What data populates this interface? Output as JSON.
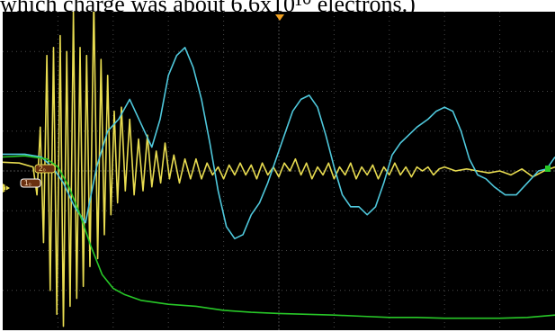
{
  "caption": {
    "text": "which charge was about 6.6x10¹⁰ electrons.)"
  },
  "scope": {
    "ch1_marker_label": "1",
    "badge_ch2": "2₀",
    "badge_ch1": "1₀",
    "colors": {
      "background": "#000000",
      "grid": "#4a4a4a",
      "yellow": "#e8dc50",
      "cyan": "#4fc8dc",
      "green": "#28c828",
      "trigger": "#f0a020",
      "frame_blue": "#2f6fd0"
    }
  },
  "chart_data": {
    "type": "line",
    "title": "",
    "xlabel": "",
    "ylabel": "",
    "grid": true,
    "divisions": {
      "x": 10,
      "y": 8
    },
    "xlim": [
      0,
      10
    ],
    "ylim": [
      -4,
      4
    ],
    "series": [
      {
        "color": "#e8dc50",
        "points": [
          [
            0,
            0.22
          ],
          [
            0.3,
            0.2
          ],
          [
            0.55,
            0.1
          ],
          [
            0.62,
            -0.6
          ],
          [
            0.68,
            1.1
          ],
          [
            0.74,
            -1.8
          ],
          [
            0.8,
            2.9
          ],
          [
            0.86,
            -3.0
          ],
          [
            0.92,
            3.1
          ],
          [
            0.98,
            -3.6
          ],
          [
            1.04,
            3.4
          ],
          [
            1.1,
            -3.9
          ],
          [
            1.16,
            3.0
          ],
          [
            1.22,
            -3.4
          ],
          [
            1.28,
            4.0
          ],
          [
            1.34,
            -3.2
          ],
          [
            1.4,
            3.1
          ],
          [
            1.46,
            -2.9
          ],
          [
            1.52,
            2.9
          ],
          [
            1.58,
            -2.4
          ],
          [
            1.65,
            4.3
          ],
          [
            1.72,
            -2.2
          ],
          [
            1.78,
            2.8
          ],
          [
            1.84,
            -1.6
          ],
          [
            1.9,
            2.4
          ],
          [
            1.96,
            -1.1
          ],
          [
            2.02,
            1.5
          ],
          [
            2.08,
            -0.8
          ],
          [
            2.15,
            1.6
          ],
          [
            2.22,
            -0.5
          ],
          [
            2.3,
            1.3
          ],
          [
            2.38,
            -0.6
          ],
          [
            2.46,
            0.8
          ],
          [
            2.54,
            -0.5
          ],
          [
            2.62,
            0.9
          ],
          [
            2.7,
            -0.4
          ],
          [
            2.78,
            0.5
          ],
          [
            2.86,
            -0.3
          ],
          [
            2.94,
            0.7
          ],
          [
            3.02,
            -0.2
          ],
          [
            3.1,
            0.4
          ],
          [
            3.2,
            -0.3
          ],
          [
            3.3,
            0.3
          ],
          [
            3.4,
            -0.2
          ],
          [
            3.5,
            0.3
          ],
          [
            3.6,
            -0.2
          ],
          [
            3.7,
            0.2
          ],
          [
            3.8,
            -0.1
          ],
          [
            3.9,
            0.1
          ],
          [
            4.0,
            -0.2
          ],
          [
            4.1,
            0.15
          ],
          [
            4.2,
            -0.1
          ],
          [
            4.3,
            0.2
          ],
          [
            4.4,
            -0.1
          ],
          [
            4.5,
            0.15
          ],
          [
            4.6,
            -0.2
          ],
          [
            4.7,
            0.2
          ],
          [
            4.8,
            -0.1
          ],
          [
            4.9,
            0.1
          ],
          [
            5.0,
            -0.15
          ],
          [
            5.1,
            0.2
          ],
          [
            5.2,
            0.0
          ],
          [
            5.3,
            0.3
          ],
          [
            5.4,
            -0.1
          ],
          [
            5.5,
            0.2
          ],
          [
            5.6,
            -0.2
          ],
          [
            5.7,
            0.1
          ],
          [
            5.8,
            -0.1
          ],
          [
            5.9,
            0.2
          ],
          [
            6.0,
            -0.2
          ],
          [
            6.1,
            0.1
          ],
          [
            6.2,
            -0.1
          ],
          [
            6.3,
            0.2
          ],
          [
            6.4,
            -0.2
          ],
          [
            6.5,
            0.1
          ],
          [
            6.6,
            -0.1
          ],
          [
            6.7,
            0.15
          ],
          [
            6.8,
            -0.2
          ],
          [
            6.9,
            0.1
          ],
          [
            7.0,
            -0.1
          ],
          [
            7.1,
            0.2
          ],
          [
            7.2,
            -0.1
          ],
          [
            7.3,
            0.1
          ],
          [
            7.4,
            -0.15
          ],
          [
            7.5,
            0.1
          ],
          [
            7.6,
            0.0
          ],
          [
            7.7,
            0.1
          ],
          [
            7.8,
            -0.1
          ],
          [
            7.9,
            0.05
          ],
          [
            8.0,
            0.1
          ],
          [
            8.2,
            0.0
          ],
          [
            8.4,
            0.05
          ],
          [
            8.6,
            0.0
          ],
          [
            8.8,
            -0.05
          ],
          [
            9.0,
            0.0
          ],
          [
            9.2,
            -0.1
          ],
          [
            9.4,
            0.05
          ],
          [
            9.6,
            -0.15
          ],
          [
            9.8,
            0.0
          ],
          [
            10.0,
            0.1
          ]
        ]
      },
      {
        "color": "#4fc8dc",
        "points": [
          [
            0,
            0.42
          ],
          [
            0.4,
            0.42
          ],
          [
            0.7,
            0.35
          ],
          [
            0.9,
            0.1
          ],
          [
            1.1,
            -0.3
          ],
          [
            1.3,
            -0.9
          ],
          [
            1.5,
            -1.3
          ],
          [
            1.7,
            0.1
          ],
          [
            1.9,
            1.0
          ],
          [
            2.1,
            1.3
          ],
          [
            2.3,
            1.8
          ],
          [
            2.5,
            1.2
          ],
          [
            2.7,
            0.6
          ],
          [
            2.85,
            1.3
          ],
          [
            3.0,
            2.4
          ],
          [
            3.15,
            2.9
          ],
          [
            3.3,
            3.1
          ],
          [
            3.45,
            2.6
          ],
          [
            3.6,
            1.8
          ],
          [
            3.75,
            0.7
          ],
          [
            3.9,
            -0.5
          ],
          [
            4.05,
            -1.4
          ],
          [
            4.2,
            -1.7
          ],
          [
            4.35,
            -1.6
          ],
          [
            4.5,
            -1.1
          ],
          [
            4.65,
            -0.8
          ],
          [
            4.8,
            -0.3
          ],
          [
            4.95,
            0.3
          ],
          [
            5.1,
            0.9
          ],
          [
            5.25,
            1.5
          ],
          [
            5.4,
            1.8
          ],
          [
            5.55,
            1.9
          ],
          [
            5.7,
            1.6
          ],
          [
            5.85,
            0.9
          ],
          [
            6.0,
            0.1
          ],
          [
            6.15,
            -0.6
          ],
          [
            6.3,
            -0.9
          ],
          [
            6.45,
            -0.9
          ],
          [
            6.6,
            -1.1
          ],
          [
            6.75,
            -0.9
          ],
          [
            6.9,
            -0.3
          ],
          [
            7.05,
            0.4
          ],
          [
            7.2,
            0.7
          ],
          [
            7.35,
            0.9
          ],
          [
            7.5,
            1.1
          ],
          [
            7.7,
            1.3
          ],
          [
            7.85,
            1.5
          ],
          [
            8.0,
            1.6
          ],
          [
            8.15,
            1.5
          ],
          [
            8.3,
            1.0
          ],
          [
            8.45,
            0.3
          ],
          [
            8.6,
            -0.1
          ],
          [
            8.75,
            -0.2
          ],
          [
            8.9,
            -0.4
          ],
          [
            9.1,
            -0.6
          ],
          [
            9.3,
            -0.6
          ],
          [
            9.5,
            -0.3
          ],
          [
            9.7,
            0.0
          ],
          [
            9.85,
            0.05
          ],
          [
            10.0,
            0.35
          ]
        ]
      },
      {
        "color": "#28c828",
        "points": [
          [
            0,
            0.35
          ],
          [
            0.4,
            0.38
          ],
          [
            0.8,
            0.3
          ],
          [
            1.0,
            0.1
          ],
          [
            1.2,
            -0.4
          ],
          [
            1.4,
            -1.1
          ],
          [
            1.6,
            -1.9
          ],
          [
            1.8,
            -2.6
          ],
          [
            2.0,
            -2.95
          ],
          [
            2.2,
            -3.1
          ],
          [
            2.5,
            -3.25
          ],
          [
            3.0,
            -3.35
          ],
          [
            3.5,
            -3.4
          ],
          [
            4.0,
            -3.5
          ],
          [
            4.5,
            -3.55
          ],
          [
            5.0,
            -3.58
          ],
          [
            5.5,
            -3.6
          ],
          [
            6.0,
            -3.62
          ],
          [
            6.5,
            -3.65
          ],
          [
            7.0,
            -3.68
          ],
          [
            7.5,
            -3.68
          ],
          [
            8.0,
            -3.7
          ],
          [
            8.5,
            -3.7
          ],
          [
            9.0,
            -3.7
          ],
          [
            9.5,
            -3.68
          ],
          [
            10.0,
            -3.62
          ]
        ]
      }
    ]
  }
}
